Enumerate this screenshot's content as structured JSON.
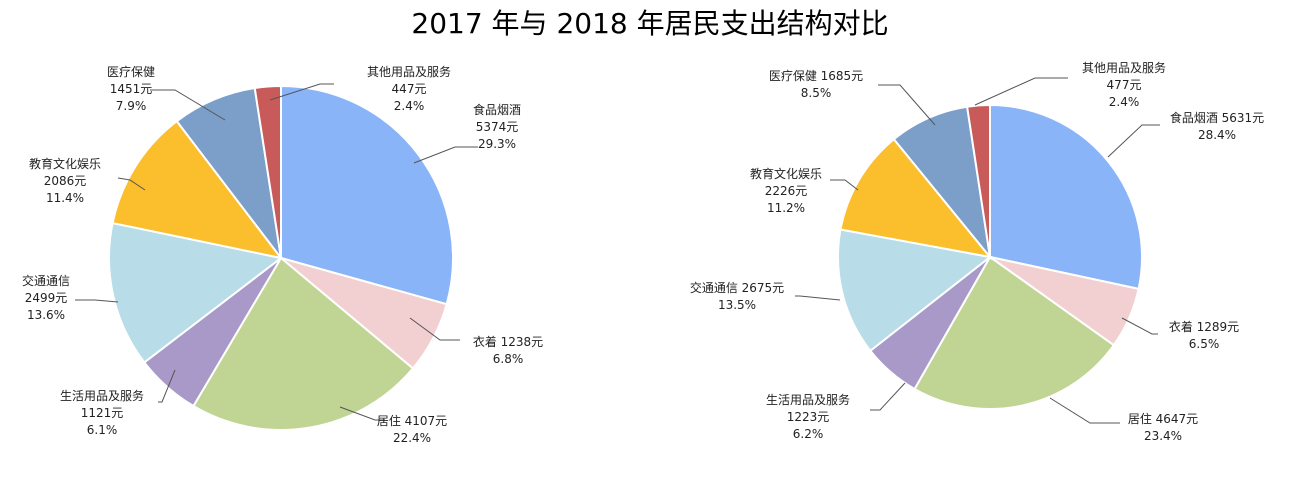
{
  "title": "2017 年与 2018 年居民支出结构对比",
  "chart_data": [
    {
      "type": "pie",
      "slices": [
        {
          "name": "食品烟酒",
          "value": 5374,
          "amount_text": "5374元",
          "percent": "29.3%",
          "color": "#8AB4F8"
        },
        {
          "name": "衣着",
          "value": 1238,
          "amount_text": "1238元",
          "percent": "6.8%",
          "color": "#F2D0D2"
        },
        {
          "name": "居住",
          "value": 4107,
          "amount_text": "4107元",
          "percent": "22.4%",
          "color": "#C0D494"
        },
        {
          "name": "生活用品及服务",
          "value": 1121,
          "amount_text": "1121元",
          "percent": "6.1%",
          "color": "#A899C8"
        },
        {
          "name": "交通通信",
          "value": 2499,
          "amount_text": "2499元",
          "percent": "13.6%",
          "color": "#B8DDE8"
        },
        {
          "name": "教育文化娱乐",
          "value": 2086,
          "amount_text": "2086元",
          "percent": "11.4%",
          "color": "#FBBE2C"
        },
        {
          "name": "医疗保健",
          "value": 1451,
          "amount_text": "1451元",
          "percent": "7.9%",
          "color": "#7C9FCA"
        },
        {
          "name": "其他用品及服务",
          "value": 447,
          "amount_text": "447元",
          "percent": "2.4%",
          "color": "#C95A5A"
        }
      ]
    },
    {
      "type": "pie",
      "slices": [
        {
          "name": "食品烟酒",
          "value": 5631,
          "amount_text": "5631元",
          "percent": "28.4%",
          "color": "#8AB4F8"
        },
        {
          "name": "衣着",
          "value": 1289,
          "amount_text": "1289元",
          "percent": "6.5%",
          "color": "#F2D0D2"
        },
        {
          "name": "居住",
          "value": 4647,
          "amount_text": "4647元",
          "percent": "23.4%",
          "color": "#C0D494"
        },
        {
          "name": "生活用品及服务",
          "value": 1223,
          "amount_text": "1223元",
          "percent": "6.2%",
          "color": "#A899C8"
        },
        {
          "name": "交通通信",
          "value": 2675,
          "amount_text": "2675元",
          "percent": "13.5%",
          "color": "#B8DDE8"
        },
        {
          "name": "教育文化娱乐",
          "value": 2226,
          "amount_text": "2226元",
          "percent": "11.2%",
          "color": "#FBBE2C"
        },
        {
          "name": "医疗保健",
          "value": 1685,
          "amount_text": "1685元",
          "percent": "8.5%",
          "color": "#7C9FCA"
        },
        {
          "name": "其他用品及服务",
          "value": 477,
          "amount_text": "477元",
          "percent": "2.4%",
          "color": "#C95A5A"
        }
      ]
    }
  ]
}
